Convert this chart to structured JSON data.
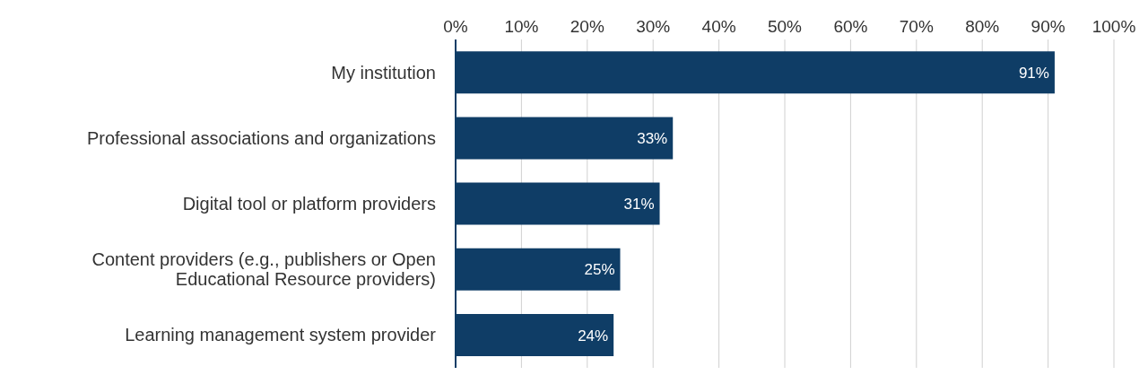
{
  "chart_data": {
    "type": "bar",
    "orientation": "horizontal",
    "categories": [
      "My institution",
      "Professional associations and organizations",
      "Digital tool or platform providers",
      "Content providers (e.g., publishers or Open Educational Resource providers)",
      "Learning management system provider"
    ],
    "values": [
      91,
      33,
      31,
      25,
      24
    ],
    "value_labels": [
      "91%",
      "33%",
      "31%",
      "25%",
      "24%"
    ],
    "color": "#0f3d66",
    "xlim": [
      0,
      100
    ],
    "xticks": [
      {
        "value": 0,
        "label": "0%"
      },
      {
        "value": 10,
        "label": "10%"
      },
      {
        "value": 20,
        "label": "20%"
      },
      {
        "value": 30,
        "label": "30%"
      },
      {
        "value": 40,
        "label": "40%"
      },
      {
        "value": 50,
        "label": "50%"
      },
      {
        "value": 60,
        "label": "60%"
      },
      {
        "value": 70,
        "label": "70%"
      },
      {
        "value": 80,
        "label": "80%"
      },
      {
        "value": 90,
        "label": "90%"
      },
      {
        "value": 100,
        "label": "100%"
      }
    ],
    "grid": "x"
  }
}
